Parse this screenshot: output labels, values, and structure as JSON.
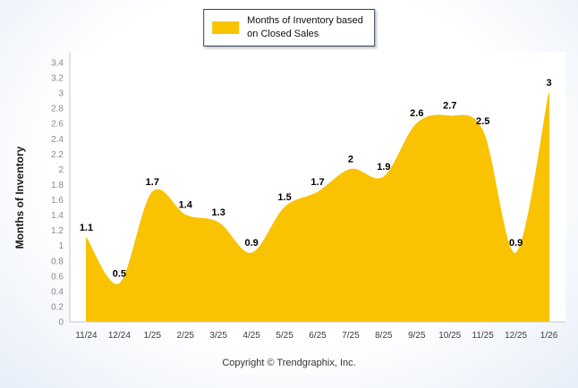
{
  "legend": {
    "label_line1": "Months of Inventory based",
    "label_line2": "on Closed Sales",
    "swatch_color": "#F9C301"
  },
  "y_axis_title": "Months of Inventory",
  "footer": {
    "copyright": "Copyright © Trendgraphix, Inc."
  },
  "chart_data": {
    "type": "area",
    "categories": [
      "11/24",
      "12/24",
      "1/25",
      "2/25",
      "3/25",
      "4/25",
      "5/25",
      "6/25",
      "7/25",
      "8/25",
      "9/25",
      "10/25",
      "11/25",
      "12/25",
      "1/26"
    ],
    "values": [
      1.1,
      0.5,
      1.7,
      1.4,
      1.3,
      0.9,
      1.5,
      1.7,
      2,
      1.9,
      2.6,
      2.7,
      2.5,
      0.9,
      3
    ],
    "title": "Months of Inventory based on Closed Sales",
    "xlabel": "",
    "ylabel": "Months of Inventory",
    "ylim": [
      0,
      3.4
    ],
    "ytick_step": 0.2,
    "fill_color": "#F9C301",
    "grid": false,
    "legend_position": "top-center",
    "data_labels": true
  }
}
